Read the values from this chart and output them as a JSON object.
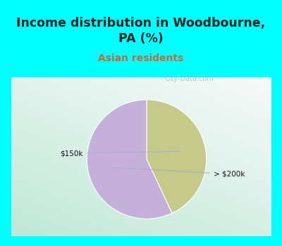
{
  "title": "Income distribution in Woodbourne,\nPA (%)",
  "subtitle": "Asian residents",
  "title_bg_color": "#00FFFF",
  "title_color": "#222222",
  "subtitle_color": "#CC6633",
  "slices": [
    {
      "label": "$150k",
      "value": 43,
      "color": "#c5c98a"
    },
    {
      "label": "> $200k",
      "value": 57,
      "color": "#c4b0d8"
    }
  ],
  "watermark": "City-Data.com",
  "chart_bg_color_left": "#c0e8d5",
  "chart_bg_color_right": "#f0f0f0",
  "border_color": "#00FFFF",
  "border_width": 8
}
